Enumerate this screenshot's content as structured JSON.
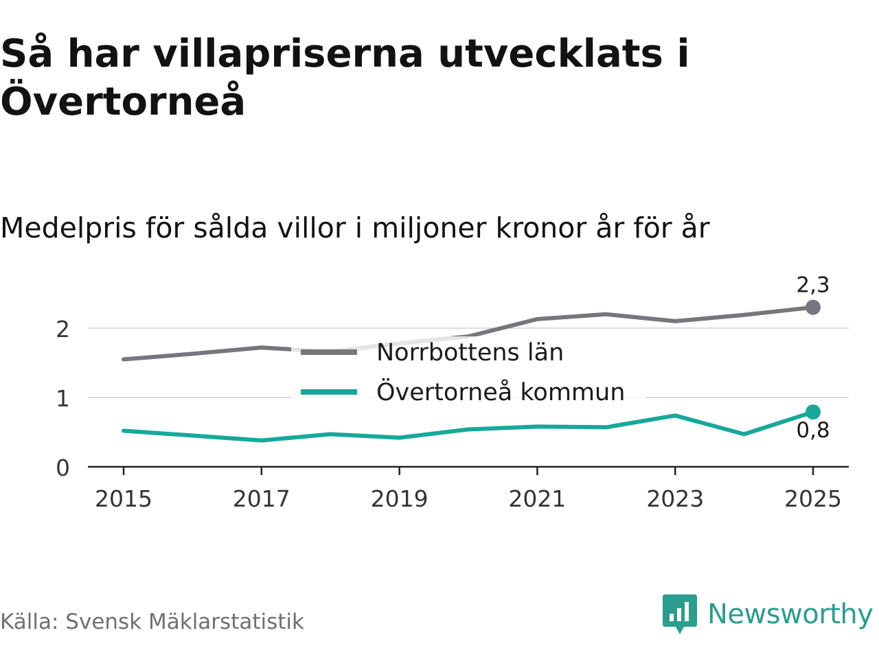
{
  "header": {
    "title": "Så har villapriserna utvecklats i Övertorneå",
    "subtitle": "Medelpris för sålda villor i miljoner kronor år för år"
  },
  "footer": {
    "source": "Källa: Svensk Mäklarstatistik",
    "brand": "Newsworthy"
  },
  "colors": {
    "norrbotten": "#77767e",
    "overtornea": "#16a89b",
    "grid": "#dcdcdc",
    "axis": "#222222",
    "brand": "#2a9d8f"
  },
  "chart_data": {
    "type": "line",
    "title": "Så har villapriserna utvecklats i Övertorneå",
    "subtitle": "Medelpris för sålda villor i miljoner kronor år för år",
    "xlabel": "",
    "ylabel": "",
    "x": [
      2015,
      2016,
      2017,
      2018,
      2019,
      2020,
      2021,
      2022,
      2023,
      2024,
      2025
    ],
    "xticks": [
      "2015",
      "2017",
      "2019",
      "2021",
      "2023",
      "2025"
    ],
    "yticks": [
      "0",
      "1",
      "2"
    ],
    "ylim": [
      0,
      2.5
    ],
    "grid": true,
    "legend_position": "center",
    "series": [
      {
        "name": "Norrbottens län",
        "color": "#77767e",
        "values": [
          1.55,
          1.63,
          1.72,
          1.66,
          1.78,
          1.88,
          2.13,
          2.2,
          2.1,
          2.19,
          2.3
        ],
        "end_label": "2,3"
      },
      {
        "name": "Övertorneå kommun",
        "color": "#16a89b",
        "values": [
          0.52,
          0.45,
          0.38,
          0.47,
          0.42,
          0.54,
          0.58,
          0.57,
          0.74,
          0.47,
          0.79
        ],
        "end_label": "0,8"
      }
    ]
  }
}
